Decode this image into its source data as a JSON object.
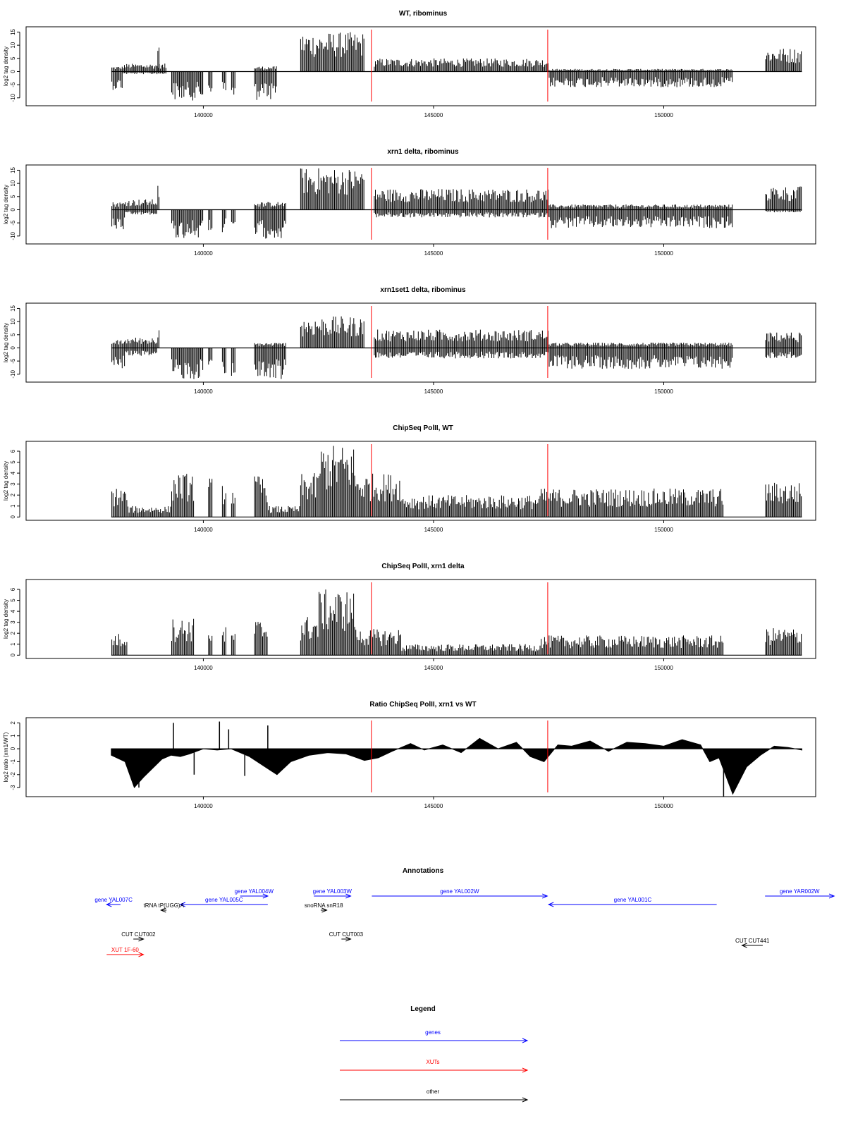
{
  "chart_data": [
    {
      "type": "bar",
      "title": "WT, ribominus",
      "ylabel": "log2 tag density",
      "xlim": [
        136150,
        153300
      ],
      "ylim": [
        -13,
        17
      ],
      "yticks": [
        -10,
        -5,
        0,
        5,
        10,
        15
      ],
      "xticks": [
        140000,
        145000,
        150000
      ],
      "markers": [
        143650,
        147480
      ],
      "segments": [
        {
          "x": [
            138000,
            138250
          ],
          "top": 2,
          "bottom": -7
        },
        {
          "x": [
            138250,
            139200
          ],
          "top": 3,
          "bottom": -1
        },
        {
          "x": [
            139000,
            139050
          ],
          "top": 10,
          "bottom": 0
        },
        {
          "x": [
            139300,
            140000
          ],
          "top": 0,
          "bottom": -11
        },
        {
          "x": [
            140100,
            140200
          ],
          "top": 0,
          "bottom": -8
        },
        {
          "x": [
            140400,
            140500
          ],
          "top": 0,
          "bottom": -9
        },
        {
          "x": [
            140600,
            140700
          ],
          "top": 0,
          "bottom": -11
        },
        {
          "x": [
            141100,
            141600
          ],
          "top": 2,
          "bottom": -11
        },
        {
          "x": [
            142100,
            143500
          ],
          "top": 15,
          "bottom": 0
        },
        {
          "x": [
            143700,
            147500
          ],
          "top": 5,
          "bottom": 0
        },
        {
          "x": [
            147500,
            151500
          ],
          "top": 1,
          "bottom": -6
        },
        {
          "x": [
            152200,
            153000
          ],
          "top": 9,
          "bottom": 0
        }
      ]
    },
    {
      "type": "bar",
      "title": "xrn1 delta, ribominus",
      "ylabel": "log2 tag density",
      "xlim": [
        136150,
        153300
      ],
      "ylim": [
        -13,
        17
      ],
      "yticks": [
        -10,
        -5,
        0,
        5,
        10,
        15
      ],
      "xticks": [
        140000,
        145000,
        150000
      ],
      "markers": [
        143650,
        147480
      ],
      "segments": [
        {
          "x": [
            138000,
            138300
          ],
          "top": 3,
          "bottom": -8
        },
        {
          "x": [
            138300,
            139000
          ],
          "top": 4,
          "bottom": -2
        },
        {
          "x": [
            139000,
            139050
          ],
          "top": 10,
          "bottom": 0
        },
        {
          "x": [
            139300,
            140000
          ],
          "top": 0,
          "bottom": -11
        },
        {
          "x": [
            140100,
            140200
          ],
          "top": 0,
          "bottom": -9
        },
        {
          "x": [
            140400,
            140500
          ],
          "top": 0,
          "bottom": -9
        },
        {
          "x": [
            140600,
            140700
          ],
          "top": 0,
          "bottom": -11
        },
        {
          "x": [
            141100,
            141800
          ],
          "top": 3,
          "bottom": -11
        },
        {
          "x": [
            142100,
            143500
          ],
          "top": 16,
          "bottom": 0
        },
        {
          "x": [
            143700,
            147500
          ],
          "top": 8,
          "bottom": -3
        },
        {
          "x": [
            147500,
            151500
          ],
          "top": 2,
          "bottom": -7
        },
        {
          "x": [
            152200,
            153000
          ],
          "top": 9,
          "bottom": -1
        }
      ]
    },
    {
      "type": "bar",
      "title": "xrn1set1 delta, ribominus",
      "ylabel": "log2 tag density",
      "xlim": [
        136150,
        153300
      ],
      "ylim": [
        -13,
        17
      ],
      "yticks": [
        -10,
        -5,
        0,
        5,
        10,
        15
      ],
      "xticks": [
        140000,
        145000,
        150000
      ],
      "markers": [
        143650,
        147480
      ],
      "segments": [
        {
          "x": [
            138000,
            138300
          ],
          "top": 3,
          "bottom": -8
        },
        {
          "x": [
            138300,
            139000
          ],
          "top": 4,
          "bottom": -3
        },
        {
          "x": [
            139000,
            139050
          ],
          "top": 10,
          "bottom": 0
        },
        {
          "x": [
            139300,
            140000
          ],
          "top": 0,
          "bottom": -12
        },
        {
          "x": [
            140100,
            140200
          ],
          "top": 0,
          "bottom": -7
        },
        {
          "x": [
            140400,
            140500
          ],
          "top": 0,
          "bottom": -10
        },
        {
          "x": [
            140600,
            140700
          ],
          "top": 0,
          "bottom": -12
        },
        {
          "x": [
            141100,
            141800
          ],
          "top": 2,
          "bottom": -12
        },
        {
          "x": [
            142100,
            143500
          ],
          "top": 12,
          "bottom": 0
        },
        {
          "x": [
            143700,
            147500
          ],
          "top": 7,
          "bottom": -4
        },
        {
          "x": [
            147500,
            151500
          ],
          "top": 2,
          "bottom": -8
        },
        {
          "x": [
            152200,
            153000
          ],
          "top": 6,
          "bottom": -4
        }
      ]
    },
    {
      "type": "bar",
      "title": "ChipSeq PolII, WT",
      "ylabel": "log2 tag density",
      "xlim": [
        136150,
        153300
      ],
      "ylim": [
        -0.3,
        6.9
      ],
      "yticks": [
        0,
        1,
        2,
        3,
        4,
        5,
        6
      ],
      "xticks": [
        140000,
        145000,
        150000
      ],
      "markers": [
        143650,
        147480
      ],
      "segments": [
        {
          "x": [
            138000,
            138350
          ],
          "top": 2.7,
          "bottom": 0
        },
        {
          "x": [
            138350,
            139300
          ],
          "top": 1,
          "bottom": 0
        },
        {
          "x": [
            139300,
            139800
          ],
          "top": 4,
          "bottom": 0
        },
        {
          "x": [
            140100,
            140200
          ],
          "top": 3.6,
          "bottom": 0
        },
        {
          "x": [
            140400,
            140500
          ],
          "top": 3.1,
          "bottom": 0
        },
        {
          "x": [
            140600,
            140700
          ],
          "top": 2.8,
          "bottom": 0
        },
        {
          "x": [
            141100,
            141400
          ],
          "top": 3.8,
          "bottom": 0
        },
        {
          "x": [
            141400,
            142100
          ],
          "top": 1,
          "bottom": 0
        },
        {
          "x": [
            142100,
            142500
          ],
          "top": 4,
          "bottom": 0
        },
        {
          "x": [
            142500,
            143300
          ],
          "top": 6.6,
          "bottom": 0
        },
        {
          "x": [
            143300,
            144300
          ],
          "top": 4,
          "bottom": 0
        },
        {
          "x": [
            144300,
            147300
          ],
          "top": 2,
          "bottom": 0
        },
        {
          "x": [
            147300,
            151300
          ],
          "top": 2.6,
          "bottom": 0
        },
        {
          "x": [
            152200,
            153000
          ],
          "top": 3.2,
          "bottom": 0
        }
      ]
    },
    {
      "type": "bar",
      "title": "ChipSeq PolII, xrn1 delta",
      "ylabel": "log2 tag density",
      "xlim": [
        136150,
        153300
      ],
      "ylim": [
        -0.3,
        6.9
      ],
      "yticks": [
        0,
        1,
        2,
        3,
        4,
        5,
        6
      ],
      "xticks": [
        140000,
        145000,
        150000
      ],
      "markers": [
        143650,
        147480
      ],
      "segments": [
        {
          "x": [
            138000,
            138350
          ],
          "top": 2,
          "bottom": 0
        },
        {
          "x": [
            139300,
            139800
          ],
          "top": 3.4,
          "bottom": 0
        },
        {
          "x": [
            140100,
            140200
          ],
          "top": 2.9,
          "bottom": 0
        },
        {
          "x": [
            140400,
            140500
          ],
          "top": 2.6,
          "bottom": 0
        },
        {
          "x": [
            140600,
            140700
          ],
          "top": 2.3,
          "bottom": 0
        },
        {
          "x": [
            141100,
            141400
          ],
          "top": 3.3,
          "bottom": 0
        },
        {
          "x": [
            142100,
            142500
          ],
          "top": 3.6,
          "bottom": 0
        },
        {
          "x": [
            142500,
            143300
          ],
          "top": 6,
          "bottom": 0
        },
        {
          "x": [
            143300,
            144300
          ],
          "top": 2.4,
          "bottom": 0
        },
        {
          "x": [
            144300,
            147300
          ],
          "top": 1,
          "bottom": 0
        },
        {
          "x": [
            147300,
            151300
          ],
          "top": 1.8,
          "bottom": 0
        },
        {
          "x": [
            152200,
            153000
          ],
          "top": 2.5,
          "bottom": 0
        }
      ]
    },
    {
      "type": "area",
      "title": "Ratio ChipSeq PolII, xrn1 vs WT",
      "ylabel": "log2 ratio (xrn1/WT)",
      "xlim": [
        136150,
        153300
      ],
      "ylim": [
        -3.7,
        2.4
      ],
      "yticks": [
        -3,
        -2,
        -1,
        0,
        1,
        2
      ],
      "xticks": [
        140000,
        145000,
        150000
      ],
      "markers": [
        143650,
        147480
      ],
      "x": [
        138000,
        138300,
        138500,
        138700,
        138900,
        139100,
        139300,
        139500,
        139700,
        140000,
        140300,
        140600,
        141000,
        141300,
        141600,
        141900,
        142300,
        142700,
        143100,
        143500,
        143800,
        144100,
        144500,
        144800,
        145200,
        145600,
        146000,
        146400,
        146800,
        147100,
        147400,
        147700,
        148000,
        148400,
        148800,
        149200,
        149600,
        150000,
        150400,
        150800,
        151000,
        151200,
        151500,
        151800,
        152100,
        152400,
        152700,
        153000
      ],
      "y": [
        -0.5,
        -1.0,
        -3.0,
        -2.2,
        -1.5,
        -0.8,
        -0.5,
        -0.6,
        -0.4,
        0.0,
        -0.1,
        0.0,
        -0.6,
        -1.3,
        -2.0,
        -1.0,
        -0.5,
        -0.3,
        -0.4,
        -0.9,
        -0.7,
        -0.2,
        0.4,
        -0.1,
        0.3,
        -0.3,
        0.8,
        0.0,
        0.5,
        -0.6,
        -1.0,
        0.3,
        0.2,
        0.6,
        -0.2,
        0.5,
        0.4,
        0.2,
        0.7,
        0.3,
        -1.0,
        -0.7,
        -3.5,
        -1.4,
        -0.5,
        0.2,
        0.1,
        -0.1
      ],
      "spikes": [
        {
          "x": 138600,
          "y": -3.0
        },
        {
          "x": 139350,
          "y": 2.0
        },
        {
          "x": 139800,
          "y": -2.0
        },
        {
          "x": 140350,
          "y": 2.1
        },
        {
          "x": 140550,
          "y": 1.5
        },
        {
          "x": 140900,
          "y": -2.1
        },
        {
          "x": 141400,
          "y": 1.8
        },
        {
          "x": 151300,
          "y": -3.7
        }
      ]
    }
  ],
  "annotations": {
    "title": "Annotations",
    "colors": {
      "gene": "#0000ff",
      "xut": "#ff0000",
      "other": "#000000"
    },
    "features": [
      {
        "label": "gene YAL007C",
        "kind": "gene",
        "start": 137900,
        "end": 138200,
        "strand": "-",
        "row": 1
      },
      {
        "label": "gene YAL005C",
        "kind": "gene",
        "start": 139500,
        "end": 141400,
        "strand": "-",
        "row": 1
      },
      {
        "label": "gene YAL004W",
        "kind": "gene",
        "start": 140800,
        "end": 141400,
        "strand": "+",
        "row": 0
      },
      {
        "label": "tRNA tP(UGG)A",
        "kind": "other",
        "start": 139080,
        "end": 139200,
        "strand": "-",
        "row": 2
      },
      {
        "label": "gene YAL003W",
        "kind": "gene",
        "start": 142400,
        "end": 143200,
        "strand": "+",
        "row": 0
      },
      {
        "label": "snoRNA snR18",
        "kind": "other",
        "start": 142550,
        "end": 142680,
        "strand": "+",
        "row": 2
      },
      {
        "label": "gene YAL002W",
        "kind": "gene",
        "start": 143660,
        "end": 147470,
        "strand": "+",
        "row": 0
      },
      {
        "label": "gene YAL001C",
        "kind": "gene",
        "start": 147500,
        "end": 151150,
        "strand": "-",
        "row": 1
      },
      {
        "label": "gene YAR002W",
        "kind": "gene",
        "start": 152200,
        "end": 153700,
        "strand": "+",
        "row": 0
      },
      {
        "label": "CUT CUT002",
        "kind": "other",
        "start": 138480,
        "end": 138700,
        "strand": "+",
        "row": 3
      },
      {
        "label": "CUT CUT003",
        "kind": "other",
        "start": 143000,
        "end": 143200,
        "strand": "+",
        "row": 3
      },
      {
        "label": "CUT CUT441",
        "kind": "other",
        "start": 151700,
        "end": 152150,
        "strand": "-",
        "row": 4
      },
      {
        "label": "XUT 1F-60",
        "kind": "xut",
        "start": 137900,
        "end": 138700,
        "strand": "+",
        "row": 5
      }
    ]
  },
  "legend": {
    "title": "Legend",
    "items": [
      {
        "label": "genes",
        "color": "#0000ff"
      },
      {
        "label": "XUTs",
        "color": "#ff0000"
      },
      {
        "label": "other",
        "color": "#000000"
      }
    ]
  }
}
